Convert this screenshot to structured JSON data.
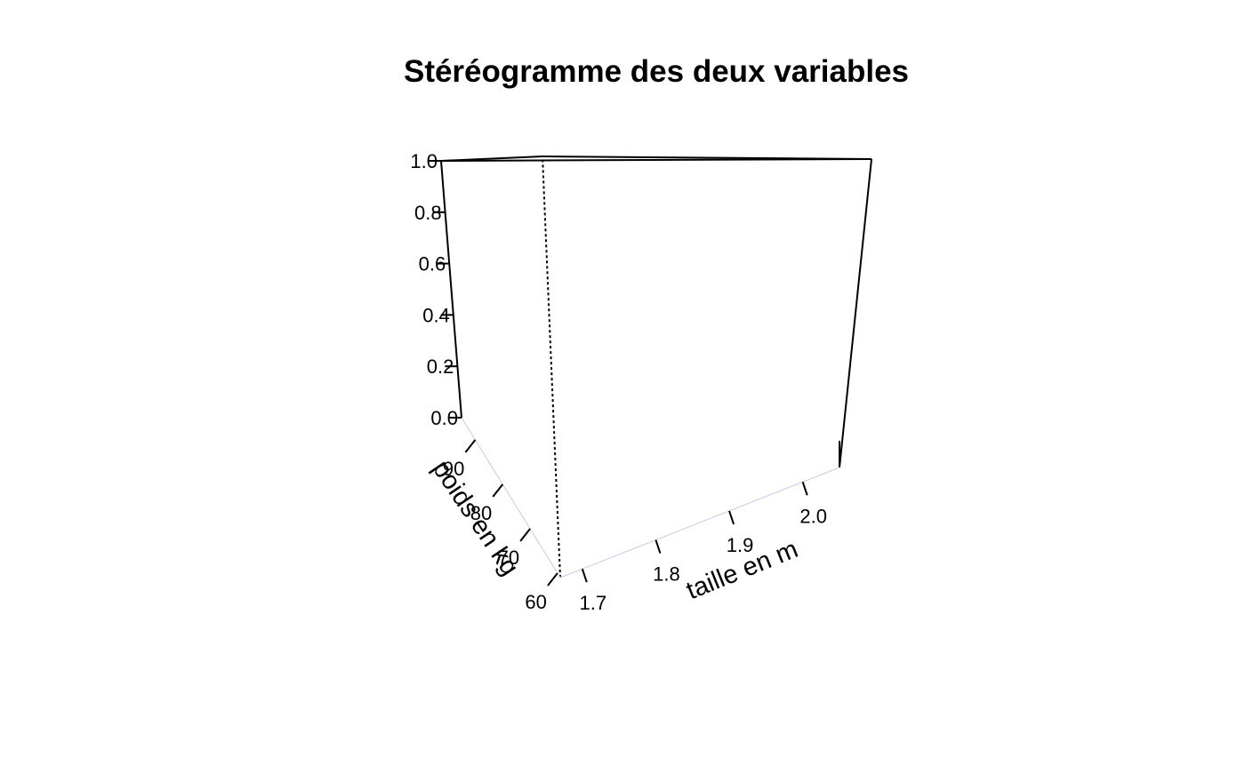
{
  "chart_data": {
    "type": "3d-density",
    "title": "Stéréogramme des deux variables",
    "x_axis": {
      "label": "taille en m",
      "ticks": [
        "1.7",
        "1.8",
        "1.9",
        "2.0"
      ],
      "tick_values": [
        1.7,
        1.8,
        1.9,
        2.0
      ],
      "range": [
        1.67,
        2.05
      ]
    },
    "y_axis": {
      "label": "poids en kg",
      "ticks": [
        "60",
        "70",
        "80",
        "90"
      ],
      "tick_values": [
        60,
        70,
        80,
        90
      ],
      "range": [
        59,
        95
      ]
    },
    "z_axis": {
      "label": "",
      "ticks": [
        "0.0",
        "0.2",
        "0.4",
        "0.6",
        "0.8",
        "1.0"
      ],
      "tick_values": [
        0.0,
        0.2,
        0.4,
        0.6,
        0.8,
        1.0
      ],
      "range": [
        0.0,
        1.0
      ]
    },
    "box": true,
    "surface_color": "#0000cc"
  }
}
